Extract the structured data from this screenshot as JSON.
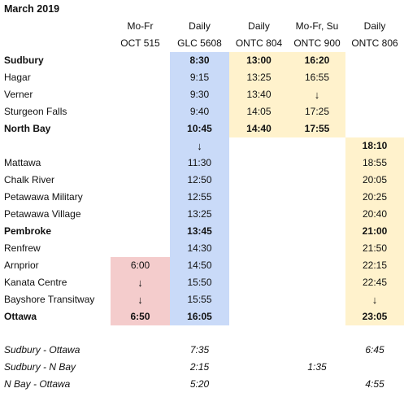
{
  "title": "March 2019",
  "columns": [
    {
      "days": "Mo-Fr",
      "service": "OCT 515"
    },
    {
      "days": "Daily",
      "service": "GLC 5608"
    },
    {
      "days": "Daily",
      "service": "ONTC 804"
    },
    {
      "days": "Mo-Fr, Su",
      "service": "ONTC 900"
    },
    {
      "days": "Daily",
      "service": "ONTC 806"
    }
  ],
  "rows": [
    {
      "stop": "Sudbury",
      "times": [
        "",
        "8:30",
        "13:00",
        "16:20",
        ""
      ]
    },
    {
      "stop": "Hagar",
      "times": [
        "",
        "9:15",
        "13:25",
        "16:55",
        ""
      ]
    },
    {
      "stop": "Verner",
      "times": [
        "",
        "9:30",
        "13:40",
        "↓",
        ""
      ]
    },
    {
      "stop": "Sturgeon Falls",
      "times": [
        "",
        "9:40",
        "14:05",
        "17:25",
        ""
      ]
    },
    {
      "stop": "North Bay",
      "times": [
        "",
        "10:45",
        "14:40",
        "17:55",
        ""
      ]
    },
    {
      "stop": "",
      "times": [
        "",
        "↓",
        "",
        "",
        "18:10"
      ]
    },
    {
      "stop": "Mattawa",
      "times": [
        "",
        "11:30",
        "",
        "",
        "18:55"
      ]
    },
    {
      "stop": "Chalk River",
      "times": [
        "",
        "12:50",
        "",
        "",
        "20:05"
      ]
    },
    {
      "stop": "Petawawa Military",
      "times": [
        "",
        "12:55",
        "",
        "",
        "20:25"
      ]
    },
    {
      "stop": "Petawawa Village",
      "times": [
        "",
        "13:25",
        "",
        "",
        "20:40"
      ]
    },
    {
      "stop": "Pembroke",
      "times": [
        "",
        "13:45",
        "",
        "",
        "21:00"
      ]
    },
    {
      "stop": "Renfrew",
      "times": [
        "",
        "14:30",
        "",
        "",
        "21:50"
      ]
    },
    {
      "stop": "Arnprior",
      "times": [
        "6:00",
        "14:50",
        "",
        "",
        "22:15"
      ]
    },
    {
      "stop": "Kanata Centre",
      "times": [
        "↓",
        "15:50",
        "",
        "",
        "22:45"
      ]
    },
    {
      "stop": "Bayshore Transitway",
      "times": [
        "↓",
        "15:55",
        "",
        "",
        "↓"
      ]
    },
    {
      "stop": "Ottawa",
      "times": [
        "6:50",
        "16:05",
        "",
        "",
        "23:05"
      ]
    }
  ],
  "summary": [
    {
      "label": "Sudbury - Ottawa",
      "times": [
        "",
        "7:35",
        "",
        "",
        "6:45"
      ]
    },
    {
      "label": "Sudbury - N Bay",
      "times": [
        "",
        "2:15",
        "",
        "1:35",
        ""
      ]
    },
    {
      "label": "N Bay - Ottawa",
      "times": [
        "",
        "5:20",
        "",
        "",
        "4:55"
      ]
    }
  ],
  "colors": {
    "oct": "#f4cccc",
    "glc": "#c9daf8",
    "ontc": "#fff2cc"
  }
}
